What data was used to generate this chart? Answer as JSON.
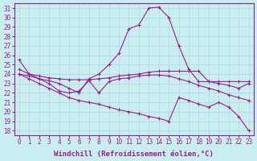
{
  "xlabel": "Windchill (Refroidissement éolien,°C)",
  "background_color": "#c8eef0",
  "line_color": "#9b1e8e",
  "xlim": [
    -0.5,
    23.5
  ],
  "ylim": [
    17.5,
    31.5
  ],
  "yticks": [
    18,
    19,
    20,
    21,
    22,
    23,
    24,
    25,
    26,
    27,
    28,
    29,
    30,
    31
  ],
  "xticks": [
    0,
    1,
    2,
    3,
    4,
    5,
    6,
    7,
    8,
    9,
    10,
    11,
    12,
    13,
    14,
    15,
    16,
    17,
    18,
    19,
    20,
    21,
    22,
    23
  ],
  "series": [
    {
      "x": [
        0,
        1,
        2,
        3,
        4,
        5,
        6,
        7,
        8,
        9,
        10,
        11,
        12,
        13,
        14,
        15,
        16,
        17,
        18,
        19,
        20,
        21,
        22,
        23
      ],
      "y": [
        25.5,
        24.0,
        23.5,
        23.3,
        23.0,
        22.5,
        22.0,
        23.5,
        24.0,
        25.0,
        26.2,
        28.8,
        29.2,
        31.0,
        31.1,
        30.0,
        27.0,
        24.5,
        23.2,
        23.2,
        23.2,
        23.2,
        23.2,
        23.2
      ]
    },
    {
      "x": [
        0,
        1,
        2,
        3,
        4,
        5,
        6,
        7,
        8,
        9,
        10,
        11,
        12,
        13,
        14,
        15,
        16,
        17,
        18,
        19,
        20,
        21,
        22,
        23
      ],
      "y": [
        24.5,
        24.0,
        23.8,
        23.6,
        23.5,
        23.4,
        23.4,
        23.4,
        23.5,
        23.6,
        23.8,
        23.9,
        24.0,
        24.2,
        24.3,
        24.3,
        24.3,
        24.3,
        24.3,
        23.2,
        23.0,
        22.8,
        22.5,
        23.0
      ]
    },
    {
      "x": [
        0,
        1,
        2,
        3,
        4,
        5,
        6,
        7,
        8,
        9,
        10,
        11,
        12,
        13,
        14,
        15,
        16,
        17,
        18,
        19,
        20,
        21,
        22,
        23
      ],
      "y": [
        24.0,
        23.8,
        23.5,
        23.0,
        22.2,
        22.0,
        22.2,
        23.3,
        22.0,
        23.2,
        23.5,
        23.6,
        23.8,
        23.9,
        23.9,
        23.8,
        23.5,
        23.2,
        22.8,
        22.5,
        22.2,
        21.8,
        21.5,
        21.2
      ]
    },
    {
      "x": [
        0,
        1,
        2,
        3,
        4,
        5,
        6,
        7,
        8,
        9,
        10,
        11,
        12,
        13,
        14,
        15,
        16,
        17,
        18,
        19,
        20,
        21,
        22,
        23
      ],
      "y": [
        24.0,
        23.5,
        23.0,
        22.5,
        22.0,
        21.5,
        21.2,
        21.0,
        20.8,
        20.5,
        20.2,
        20.0,
        19.8,
        19.5,
        19.3,
        19.0,
        21.5,
        21.2,
        20.8,
        20.5,
        21.0,
        20.5,
        19.5,
        18.0
      ]
    }
  ],
  "grid_color": "#b0d8da",
  "tick_fontsize": 5.5,
  "xlabel_fontsize": 6.5
}
